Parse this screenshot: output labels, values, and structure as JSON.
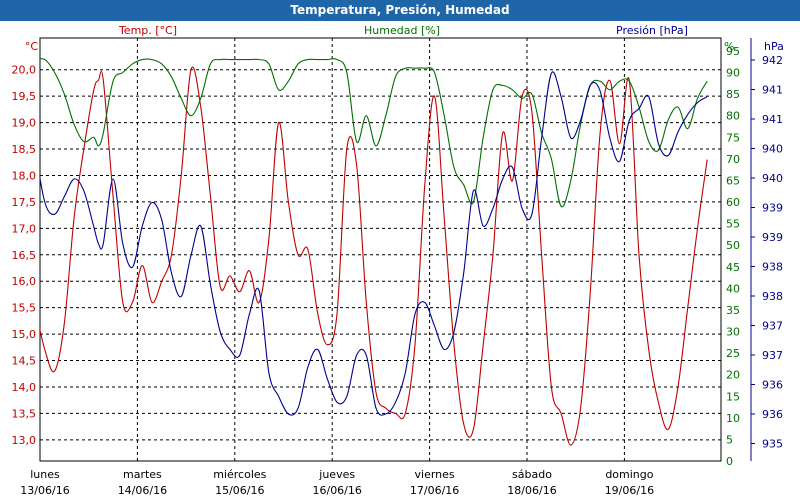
{
  "window": {
    "title": "Temperatura, Presión, Humedad"
  },
  "colors": {
    "temp": "#c00000",
    "hum": "#007000",
    "pres": "#000090",
    "titlebar": "#1f66a8"
  },
  "chart_data": {
    "type": "line",
    "title": "Temperatura, Presión, Humedad",
    "grid": true,
    "axes": {
      "temp": {
        "unit": "°C",
        "label": "Temp. [°C]",
        "ticks": [
          "20,0",
          "19,5",
          "19,0",
          "18,5",
          "18,0",
          "17,5",
          "17,0",
          "16,5",
          "16,0",
          "15,5",
          "15,0",
          "14,5",
          "14,0",
          "13,5",
          "13,0"
        ],
        "range": [
          12.6,
          20.6
        ]
      },
      "hum": {
        "unit": "%",
        "label": "Humedad [%]",
        "ticks": [
          "95",
          "90",
          "85",
          "80",
          "75",
          "70",
          "65",
          "60",
          "55",
          "50",
          "45",
          "40",
          "35",
          "30",
          "25",
          "20",
          "15",
          "10",
          "5",
          "0"
        ],
        "range": [
          0,
          98
        ]
      },
      "pres": {
        "unit": "hPa",
        "label": "Presión [hPa]",
        "ticks": [
          "942",
          "941",
          "941",
          "940",
          "940",
          "939",
          "939",
          "938",
          "938",
          "937",
          "937",
          "936",
          "936",
          "935"
        ],
        "range": [
          935,
          942.2
        ]
      }
    },
    "x_days": [
      {
        "name": "lunes",
        "date": "13/06/16"
      },
      {
        "name": "martes",
        "date": "14/06/16"
      },
      {
        "name": "miércoles",
        "date": "15/06/16"
      },
      {
        "name": "jueves",
        "date": "16/06/16"
      },
      {
        "name": "viernes",
        "date": "17/06/16"
      },
      {
        "name": "sábado",
        "date": "18/06/16"
      },
      {
        "name": "domingo",
        "date": "19/06/16"
      }
    ],
    "x_range": [
      0,
      7
    ],
    "series": [
      {
        "name": "Temp. [°C]",
        "axis": "temp",
        "color": "#c00000",
        "x": [
          -0.05,
          0.05,
          0.15,
          0.25,
          0.35,
          0.45,
          0.55,
          0.6,
          0.65,
          0.75,
          0.85,
          0.95,
          1.05,
          1.15,
          1.25,
          1.35,
          1.45,
          1.55,
          1.65,
          1.75,
          1.85,
          1.95,
          2.05,
          2.15,
          2.25,
          2.35,
          2.45,
          2.55,
          2.65,
          2.75,
          2.85,
          2.95,
          3.05,
          3.15,
          3.25,
          3.35,
          3.45,
          3.55,
          3.65,
          3.75,
          3.85,
          3.95,
          4.05,
          4.15,
          4.25,
          4.35,
          4.45,
          4.55,
          4.65,
          4.75,
          4.85,
          4.95,
          5.05,
          5.15,
          5.25,
          5.35,
          5.45,
          5.55,
          5.65,
          5.75,
          5.85,
          5.95,
          6.05,
          6.15,
          6.25,
          6.35,
          6.45,
          6.55,
          6.65,
          6.75,
          6.85
        ],
        "y": [
          15.5,
          14.7,
          14.3,
          15.2,
          17.2,
          18.5,
          19.6,
          19.8,
          19.8,
          17.6,
          15.6,
          15.6,
          16.3,
          15.6,
          16.0,
          16.5,
          18.0,
          20.0,
          19.3,
          17.6,
          15.9,
          16.1,
          15.8,
          16.2,
          15.6,
          16.8,
          19.0,
          17.5,
          16.5,
          16.6,
          15.4,
          14.8,
          15.4,
          18.5,
          18.2,
          15.6,
          13.9,
          13.6,
          13.5,
          13.5,
          14.8,
          17.8,
          19.5,
          17.2,
          14.8,
          13.3,
          13.2,
          14.8,
          16.5,
          18.8,
          17.9,
          19.5,
          19.2,
          16.5,
          14.0,
          13.5,
          12.9,
          13.6,
          15.8,
          18.8,
          19.8,
          18.6,
          19.8,
          16.5,
          14.7,
          13.7,
          13.2,
          14.0,
          15.5,
          17.0,
          18.3
        ]
      },
      {
        "name": "Humedad [%]",
        "axis": "hum",
        "color": "#007000",
        "x": [
          -0.05,
          0.05,
          0.15,
          0.25,
          0.35,
          0.45,
          0.55,
          0.6,
          0.65,
          0.75,
          0.85,
          0.95,
          1.05,
          1.15,
          1.25,
          1.35,
          1.45,
          1.55,
          1.65,
          1.75,
          1.85,
          1.95,
          2.05,
          2.15,
          2.25,
          2.35,
          2.45,
          2.55,
          2.65,
          2.75,
          2.85,
          2.95,
          3.05,
          3.15,
          3.25,
          3.35,
          3.45,
          3.55,
          3.65,
          3.75,
          3.85,
          3.95,
          4.05,
          4.15,
          4.25,
          4.35,
          4.45,
          4.55,
          4.65,
          4.75,
          4.85,
          4.95,
          5.05,
          5.15,
          5.25,
          5.35,
          5.45,
          5.55,
          5.65,
          5.75,
          5.85,
          5.95,
          6.05,
          6.15,
          6.25,
          6.35,
          6.45,
          6.55,
          6.65,
          6.75,
          6.85
        ],
        "y": [
          93,
          93,
          90,
          85,
          78,
          74,
          75,
          73,
          76,
          88,
          90,
          92,
          93,
          93,
          92,
          89,
          84,
          80,
          84,
          92,
          93,
          93,
          93,
          93,
          93,
          92,
          86,
          88,
          92,
          93,
          93,
          93,
          93,
          90,
          74,
          80,
          73,
          80,
          89,
          91,
          91,
          91,
          90,
          80,
          68,
          64,
          60,
          75,
          86,
          87,
          86,
          84,
          85,
          76,
          70,
          59,
          65,
          78,
          87,
          88,
          86,
          88,
          88,
          82,
          74,
          72,
          79,
          82,
          77,
          84,
          88
        ]
      },
      {
        "name": "Presión [hPa]",
        "axis": "pres",
        "color": "#000090",
        "x": [
          -0.05,
          0.05,
          0.15,
          0.25,
          0.35,
          0.45,
          0.55,
          0.6,
          0.65,
          0.75,
          0.85,
          0.95,
          1.05,
          1.15,
          1.25,
          1.35,
          1.45,
          1.55,
          1.65,
          1.75,
          1.85,
          1.95,
          2.05,
          2.15,
          2.25,
          2.35,
          2.45,
          2.55,
          2.65,
          2.75,
          2.85,
          2.95,
          3.05,
          3.15,
          3.25,
          3.35,
          3.45,
          3.55,
          3.65,
          3.75,
          3.85,
          3.95,
          4.05,
          4.15,
          4.25,
          4.35,
          4.45,
          4.55,
          4.65,
          4.75,
          4.85,
          4.95,
          5.05,
          5.15,
          5.25,
          5.35,
          5.45,
          5.55,
          5.65,
          5.75,
          5.85,
          5.95,
          6.05,
          6.15,
          6.25,
          6.35,
          6.45,
          6.55,
          6.65,
          6.75,
          6.85
        ],
        "y": [
          940.3,
          939.4,
          939.2,
          939.5,
          939.8,
          939.6,
          939.0,
          938.7,
          938.7,
          939.8,
          938.7,
          938.3,
          939.0,
          939.4,
          939.1,
          938.2,
          937.8,
          938.5,
          939.0,
          938.0,
          937.2,
          936.9,
          936.8,
          937.5,
          937.9,
          936.5,
          936.1,
          935.8,
          935.9,
          936.6,
          936.9,
          936.4,
          936.0,
          936.1,
          936.8,
          936.8,
          935.9,
          935.8,
          936.0,
          936.5,
          937.5,
          937.7,
          937.3,
          936.9,
          937.2,
          938.2,
          939.6,
          939.0,
          939.3,
          939.8,
          940.0,
          939.3,
          939.2,
          940.5,
          941.6,
          941.2,
          940.5,
          940.8,
          941.4,
          941.3,
          940.5,
          940.1,
          940.8,
          941.0,
          941.2,
          940.4,
          940.2,
          940.6,
          940.9,
          941.1,
          941.2
        ]
      }
    ]
  }
}
